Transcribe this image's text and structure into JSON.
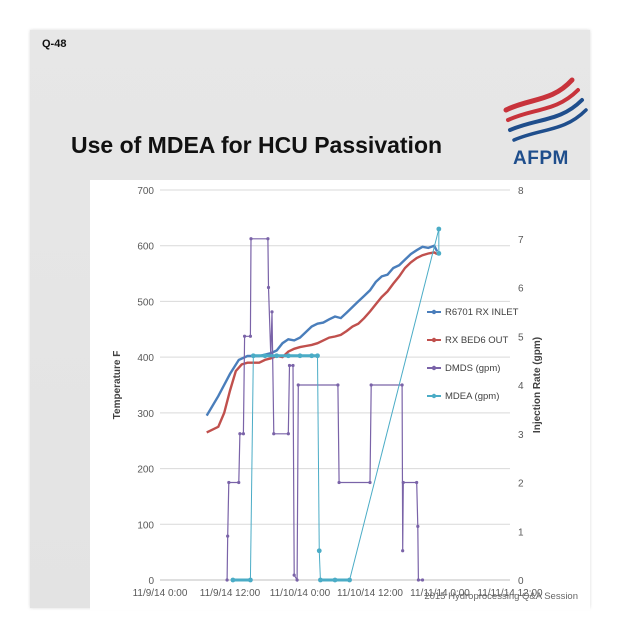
{
  "slide": {
    "id_label": "Q-48",
    "title": "Use of MDEA for HCU Passivation",
    "logo_text": "AFPM",
    "footer": "2015 Hydroprocessing Q&A Session",
    "colors": {
      "logo_red": "#c8333b",
      "logo_blue": "#1f4e8c"
    }
  },
  "chart_data": {
    "type": "line",
    "title": "",
    "x": {
      "label": "",
      "ticks": [
        "11/9/14 0:00",
        "11/9/14 12:00",
        "11/10/14 0:00",
        "11/10/14 12:00",
        "11/11/14 0:00",
        "11/11/14 12:00"
      ],
      "range_hours": [
        0,
        60
      ]
    },
    "y_left": {
      "label": "Temperature F",
      "range": [
        0,
        700
      ],
      "ticks": [
        0,
        100,
        200,
        300,
        400,
        500,
        600,
        700
      ]
    },
    "y_right": {
      "label": "Injection Rate (gpm)",
      "range": [
        0,
        8
      ],
      "ticks": [
        0,
        1,
        2,
        3,
        4,
        5,
        6,
        7,
        8
      ]
    },
    "gridlines": "horizontal",
    "legend_position": "right",
    "series": [
      {
        "name": "R6701 RX INLET",
        "axis": "left",
        "color": "#4a7ebb",
        "style": "line",
        "points": [
          [
            8,
            295
          ],
          [
            10,
            330
          ],
          [
            12,
            370
          ],
          [
            13.5,
            395
          ],
          [
            15,
            402
          ],
          [
            17,
            402
          ],
          [
            19,
            407
          ],
          [
            20,
            412
          ],
          [
            21,
            425
          ],
          [
            22,
            432
          ],
          [
            23,
            430
          ],
          [
            24,
            435
          ],
          [
            25,
            445
          ],
          [
            26,
            455
          ],
          [
            27,
            460
          ],
          [
            28,
            462
          ],
          [
            29,
            468
          ],
          [
            30,
            473
          ],
          [
            31,
            470
          ],
          [
            32,
            480
          ],
          [
            33,
            490
          ],
          [
            34,
            500
          ],
          [
            35,
            510
          ],
          [
            36,
            520
          ],
          [
            37,
            535
          ],
          [
            38,
            545
          ],
          [
            39,
            548
          ],
          [
            40,
            560
          ],
          [
            41,
            565
          ],
          [
            42,
            575
          ],
          [
            43,
            585
          ],
          [
            44,
            592
          ],
          [
            45,
            598
          ],
          [
            46,
            596
          ],
          [
            47,
            600
          ],
          [
            47.5,
            590
          ]
        ]
      },
      {
        "name": "RX BED6 OUT",
        "axis": "left",
        "color": "#c0504d",
        "style": "line",
        "points": [
          [
            8,
            265
          ],
          [
            10,
            275
          ],
          [
            11,
            300
          ],
          [
            12,
            340
          ],
          [
            13,
            375
          ],
          [
            14,
            387
          ],
          [
            15,
            390
          ],
          [
            17,
            390
          ],
          [
            18,
            395
          ],
          [
            19,
            398
          ],
          [
            20,
            402
          ],
          [
            21,
            400
          ],
          [
            22,
            410
          ],
          [
            23,
            415
          ],
          [
            24,
            418
          ],
          [
            25,
            420
          ],
          [
            26,
            422
          ],
          [
            27,
            425
          ],
          [
            28,
            430
          ],
          [
            29,
            435
          ],
          [
            30,
            437
          ],
          [
            31,
            440
          ],
          [
            32,
            447
          ],
          [
            33,
            455
          ],
          [
            34,
            460
          ],
          [
            35,
            470
          ],
          [
            36,
            482
          ],
          [
            37,
            495
          ],
          [
            38,
            508
          ],
          [
            39,
            518
          ],
          [
            40,
            532
          ],
          [
            41,
            545
          ],
          [
            42,
            560
          ],
          [
            43,
            570
          ],
          [
            44,
            578
          ],
          [
            45,
            583
          ],
          [
            46,
            586
          ],
          [
            47,
            588
          ],
          [
            47.5,
            585
          ]
        ]
      },
      {
        "name": "DMDS (gpm)",
        "axis": "right",
        "color": "#7a63a8",
        "style": "markers-line",
        "points": [
          [
            11.5,
            0
          ],
          [
            11.6,
            0.9
          ],
          [
            11.8,
            2
          ],
          [
            13.5,
            2
          ],
          [
            13.7,
            3
          ],
          [
            14.3,
            3
          ],
          [
            14.5,
            5
          ],
          [
            15.5,
            5
          ],
          [
            15.6,
            7
          ],
          [
            18.5,
            7
          ],
          [
            18.6,
            6
          ],
          [
            19,
            4.6
          ],
          [
            19.2,
            5.5
          ],
          [
            19.5,
            3
          ],
          [
            22,
            3
          ],
          [
            22.2,
            4.4
          ],
          [
            22.8,
            4.4
          ],
          [
            23,
            0.1
          ],
          [
            23.5,
            0
          ],
          [
            23.7,
            4
          ],
          [
            30.5,
            4
          ],
          [
            30.7,
            2
          ],
          [
            36,
            2
          ],
          [
            36.2,
            4
          ],
          [
            41.5,
            4
          ],
          [
            41.6,
            0.6
          ],
          [
            41.7,
            2
          ],
          [
            44,
            2
          ],
          [
            44.2,
            1.1
          ],
          [
            44.3,
            0
          ],
          [
            45,
            0
          ]
        ]
      },
      {
        "name": "MDEA (gpm)",
        "axis": "right",
        "color": "#4bacc6",
        "style": "markers",
        "points": [
          [
            12.5,
            0
          ],
          [
            15.5,
            0
          ],
          [
            16,
            4.6
          ],
          [
            18,
            4.6
          ],
          [
            20,
            4.6
          ],
          [
            22,
            4.6
          ],
          [
            24,
            4.6
          ],
          [
            26,
            4.6
          ],
          [
            27,
            4.6
          ],
          [
            27.3,
            0.6
          ],
          [
            27.5,
            0
          ],
          [
            30,
            0
          ],
          [
            32.5,
            0
          ],
          [
            47.8,
            7.2
          ],
          [
            47.8,
            6.7
          ]
        ]
      }
    ]
  }
}
